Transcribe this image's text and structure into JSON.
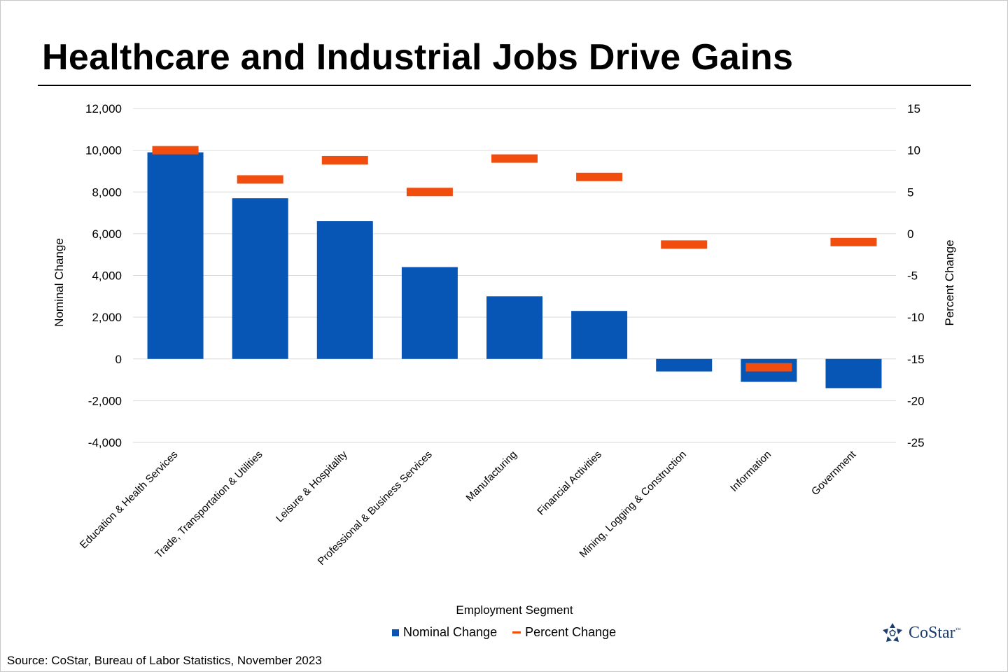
{
  "title": "Healthcare and Industrial Jobs Drive Gains",
  "source": "Source: CoStar, Bureau of Labor Statistics, November 2023",
  "logo": {
    "text": "CoStar",
    "tm": "™",
    "icon": "costar-star-logo"
  },
  "colors": {
    "nominal": "#0755b4",
    "percent": "#f04d0f",
    "grid": "#d9d9d9"
  },
  "chart_data": {
    "type": "bar",
    "title": "Healthcare and Industrial Jobs Drive Gains",
    "xlabel": "Employment Segment",
    "ylabel": "Nominal Change",
    "y2label": "Percent Change",
    "ylim": [
      -4000,
      12000
    ],
    "y2lim": [
      -25,
      15
    ],
    "yticks": [
      "12,000",
      "10,000",
      "8,000",
      "6,000",
      "4,000",
      "2,000",
      "0",
      "-2,000",
      "-4,000"
    ],
    "y2ticks": [
      "15",
      "10",
      "5",
      "0",
      "-5",
      "-10",
      "-15",
      "-20",
      "-25"
    ],
    "grid": true,
    "legend_position": "bottom",
    "categories": [
      "Education & Health Services",
      "Trade, Transportation & Utilities",
      "Leisure & Hospitality",
      "Professional & Business Services",
      "Manufacturing",
      "Financial Activities",
      "Mining, Logging & Construction",
      "Information",
      "Government"
    ],
    "series": [
      {
        "name": "Nominal Change",
        "axis": "left",
        "type": "bar",
        "values": [
          9900,
          7700,
          6600,
          4400,
          3000,
          2300,
          -600,
          -1100,
          -1400
        ]
      },
      {
        "name": "Percent Change",
        "axis": "right",
        "type": "marker",
        "values": [
          10,
          6.5,
          8.8,
          5,
          9,
          6.8,
          -1.3,
          -16,
          -1
        ]
      }
    ]
  }
}
